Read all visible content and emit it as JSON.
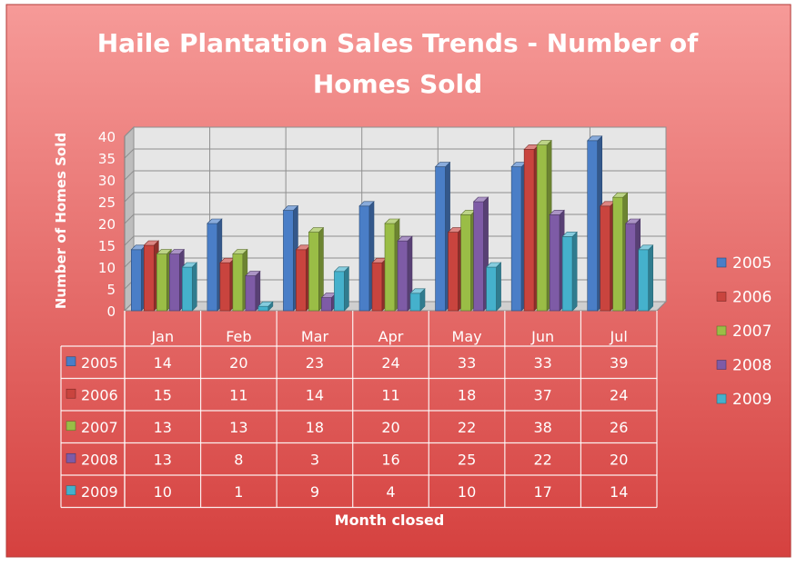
{
  "chart_data": {
    "type": "bar",
    "title_lines": [
      "Haile Plantation Sales Trends - Number of",
      "Homes Sold"
    ],
    "xlabel": "Month closed",
    "ylabel": "Number of Homes Sold",
    "categories": [
      "Jan",
      "Feb",
      "Mar",
      "Apr",
      "May",
      "Jun",
      "Jul"
    ],
    "ylim": [
      0,
      40
    ],
    "yticks": [
      0,
      5,
      10,
      15,
      20,
      25,
      30,
      35,
      40
    ],
    "grid": true,
    "legend_position": "right",
    "data_table": true,
    "series": [
      {
        "name": "2005",
        "color": "#4a7ec7",
        "values": [
          14,
          20,
          23,
          24,
          33,
          33,
          39
        ]
      },
      {
        "name": "2006",
        "color": "#c9443e",
        "values": [
          15,
          11,
          14,
          11,
          18,
          37,
          24
        ]
      },
      {
        "name": "2007",
        "color": "#9abd46",
        "values": [
          13,
          13,
          18,
          20,
          22,
          38,
          26
        ]
      },
      {
        "name": "2008",
        "color": "#7e5ba6",
        "values": [
          13,
          8,
          3,
          16,
          25,
          22,
          20
        ]
      },
      {
        "name": "2009",
        "color": "#45b1cc",
        "values": [
          10,
          1,
          9,
          4,
          10,
          17,
          14
        ]
      }
    ]
  }
}
